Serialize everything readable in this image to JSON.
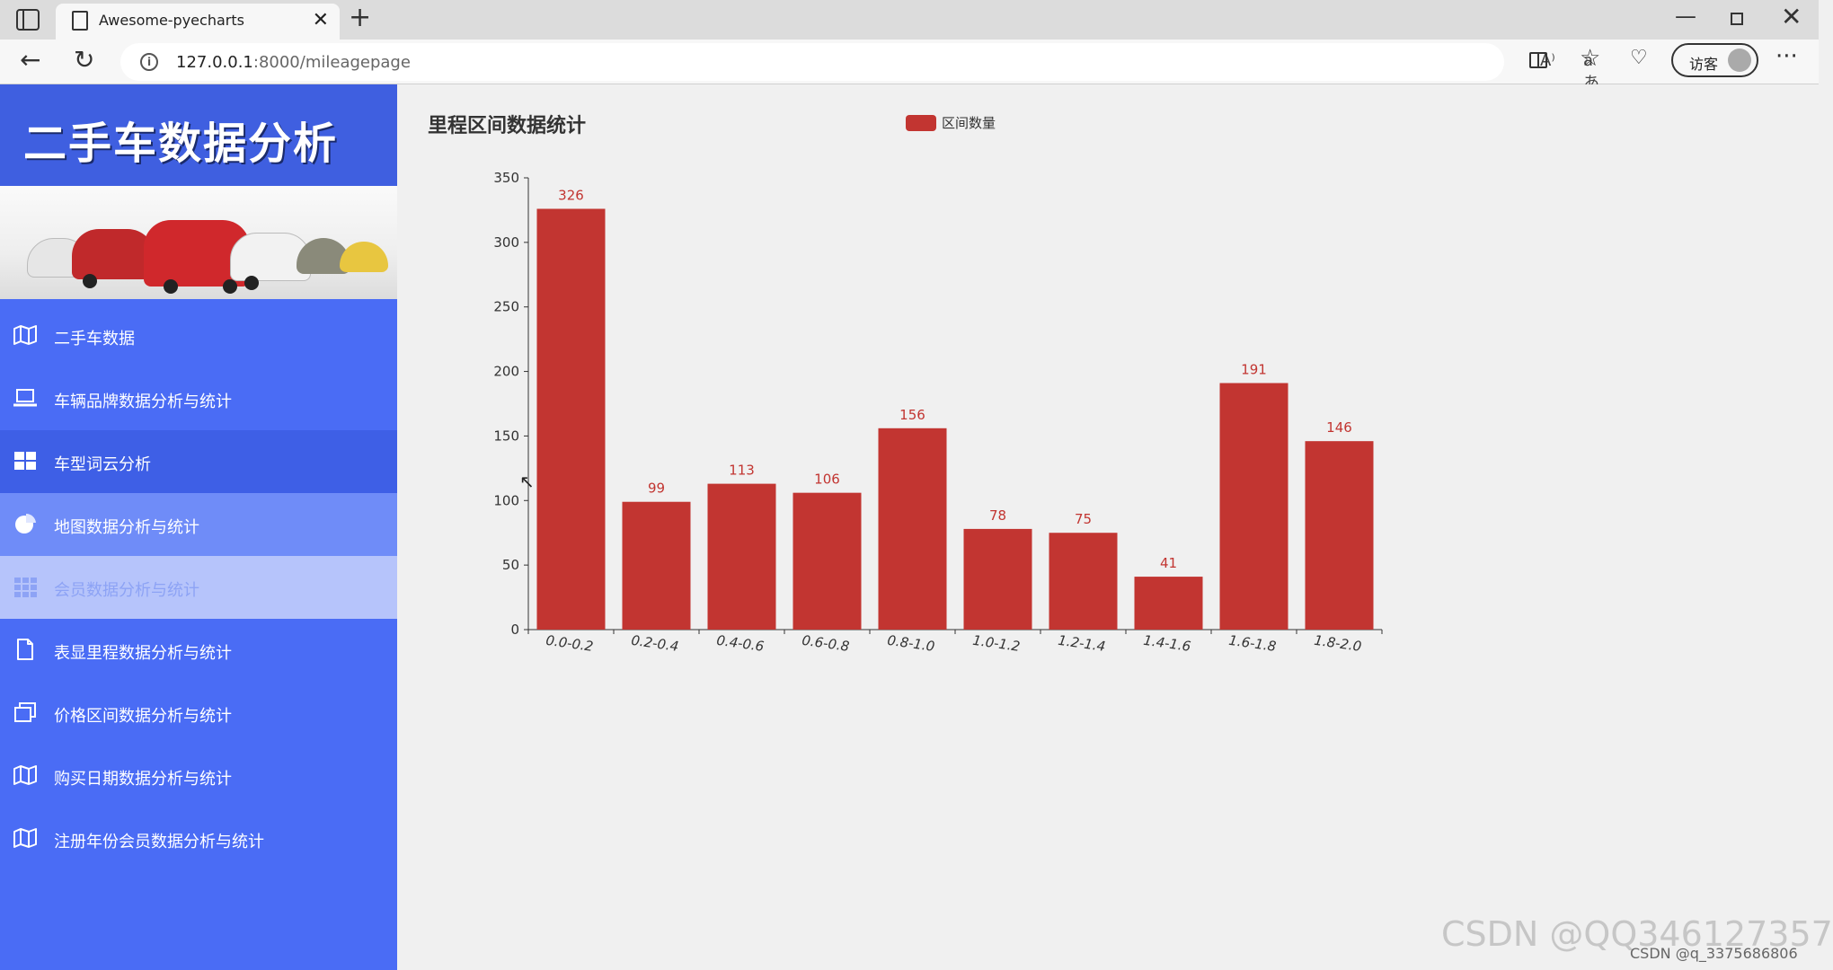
{
  "browser": {
    "tab_title": "Awesome-pyecharts",
    "url_host": "127.0.0.1",
    "url_rest": ":8000/mileagepage",
    "guest_label": "访客"
  },
  "sidebar": {
    "site_title": "二手车数据分析",
    "items": [
      {
        "label": "二手车数据",
        "icon": "map-icon"
      },
      {
        "label": "车辆品牌数据分析与统计",
        "icon": "laptop-icon"
      },
      {
        "label": "车型词云分析",
        "icon": "windows-icon"
      },
      {
        "label": "地图数据分析与统计",
        "icon": "pie-chart-icon"
      },
      {
        "label": "会员数据分析与统计",
        "icon": "grid-icon"
      },
      {
        "label": "表显里程数据分析与统计",
        "icon": "file-icon"
      },
      {
        "label": "价格区间数据分析与统计",
        "icon": "clone-icon"
      },
      {
        "label": "购买日期数据分析与统计",
        "icon": "map-icon"
      },
      {
        "label": "注册年份会员数据分析与统计",
        "icon": "map-icon"
      }
    ]
  },
  "chart_data": {
    "type": "bar",
    "title": "里程区间数据统计",
    "categories": [
      "0.0-0.2",
      "0.2-0.4",
      "0.4-0.6",
      "0.6-0.8",
      "0.8-1.0",
      "1.0-1.2",
      "1.2-1.4",
      "1.4-1.6",
      "1.6-1.8",
      "1.8-2.0"
    ],
    "series": [
      {
        "name": "区间数量",
        "values": [
          326,
          99,
          113,
          106,
          156,
          78,
          75,
          41,
          191,
          146
        ],
        "color": "#c23531"
      }
    ],
    "ylim": [
      0,
      350
    ],
    "yticks": [
      0,
      50,
      100,
      150,
      200,
      250,
      300,
      350
    ],
    "legend_position": "top-center",
    "data_labels": true
  },
  "watermark": "CSDN @QQ346127357",
  "watermark_small": "CSDN @q_3375686806"
}
